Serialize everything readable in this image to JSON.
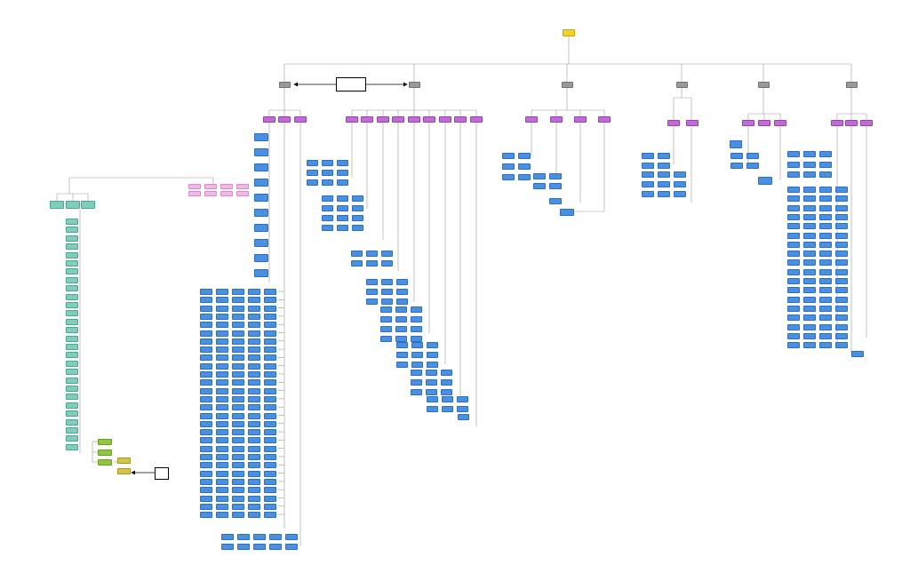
{
  "diagram": {
    "kind": "org-tree",
    "node_text": "",
    "colors": {
      "root": "#f2d22e",
      "branch": "#9a9a9a",
      "sub_branch": "#c26ad6",
      "leaf": "#4a90e2",
      "teal_group": "#7fcdbb",
      "pink_group": "#f2b6e8",
      "lime_group": "#8fc73e",
      "gold_group": "#d8c24a",
      "edge": "#9a9a9a",
      "arrow": "#000000"
    },
    "notes": [
      {
        "id": "center-note",
        "text": ""
      },
      {
        "id": "bottom-note",
        "text": ""
      }
    ]
  }
}
